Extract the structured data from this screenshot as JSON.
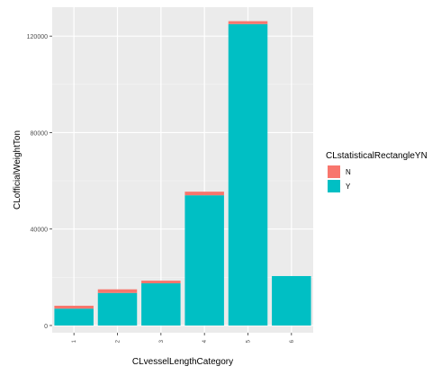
{
  "chart_data": {
    "type": "bar",
    "stacked": true,
    "xlabel": "CLvesselLengthCategory",
    "ylabel": "CLofficialWeightTon",
    "categories": [
      "1",
      "2",
      "3",
      "4",
      "5",
      "6"
    ],
    "series": [
      {
        "name": "N",
        "color": "#F8766D",
        "values": [
          1200,
          1500,
          1100,
          1500,
          1200,
          0
        ]
      },
      {
        "name": "Y",
        "color": "#00BFC4",
        "values": [
          7000,
          13500,
          17500,
          54000,
          125000,
          20500
        ]
      }
    ],
    "ylim": [
      -3000,
      132000
    ],
    "yticks": [
      0,
      40000,
      80000,
      120000
    ],
    "ytick_labels": [
      "0",
      "40000",
      "80000",
      "120000"
    ],
    "grid": true,
    "legend": {
      "title": "CLstatisticalRectangleYN",
      "placement": "right",
      "items": [
        "N",
        "Y"
      ]
    }
  }
}
